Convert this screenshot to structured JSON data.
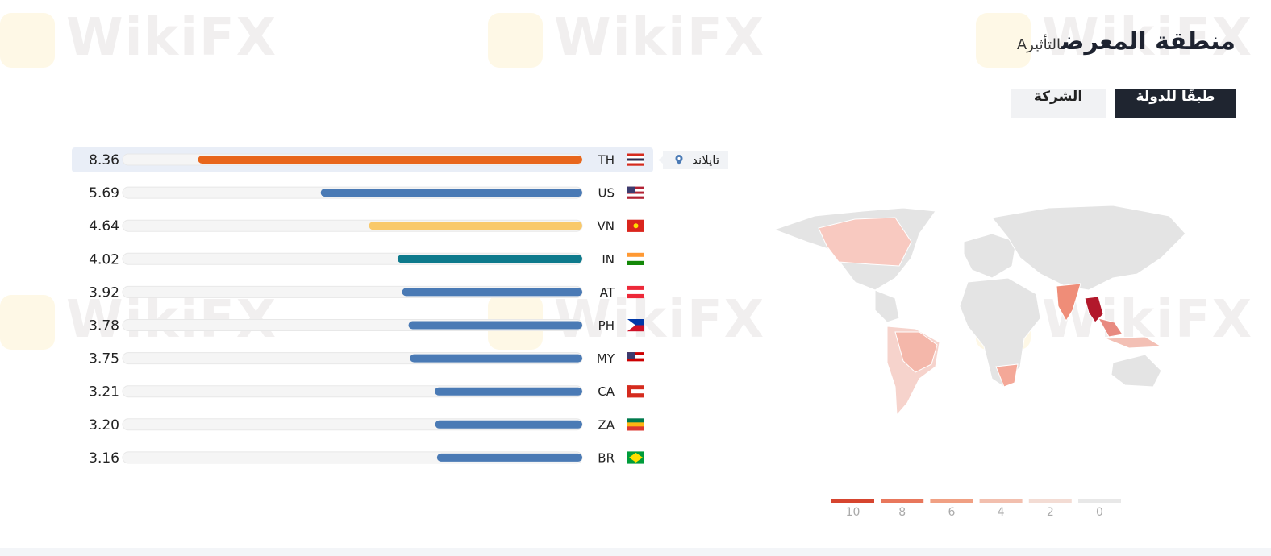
{
  "watermark": "WikiFX",
  "header": {
    "title": "منطقة المعرض",
    "subtitle": "التأثيرA"
  },
  "tabs": [
    "طبقًا للدولة",
    "الشركة"
  ],
  "tooltip": "تايلاند",
  "chart_data": {
    "type": "bar",
    "orientation": "horizontal",
    "categories": [
      "TH",
      "US",
      "VN",
      "IN",
      "AT",
      "PH",
      "MY",
      "CA",
      "ZA",
      "BR"
    ],
    "values": [
      8.36,
      5.69,
      4.64,
      4.02,
      3.92,
      3.78,
      3.75,
      3.21,
      3.2,
      3.16
    ],
    "value_labels": [
      "8.36",
      "5.69",
      "4.64",
      "4.02",
      "3.92",
      "3.78",
      "3.75",
      "3.21",
      "3.20",
      "3.16"
    ],
    "colors": [
      "#e8661c",
      "#4a7ab5",
      "#f9c96a",
      "#0e7a8c",
      "#4a7ab5",
      "#4a7ab5",
      "#4a7ab5",
      "#4a7ab5",
      "#4a7ab5",
      "#4a7ab5"
    ],
    "xlim": [
      0,
      10
    ]
  },
  "map_legend": [
    {
      "value": 10,
      "color": "#d6452f"
    },
    {
      "value": 8,
      "color": "#e8775c"
    },
    {
      "value": 6,
      "color": "#f0a083"
    },
    {
      "value": 4,
      "color": "#f2bfae"
    },
    {
      "value": 2,
      "color": "#f3dcd4"
    },
    {
      "value": 0,
      "color": "#e8e8e8"
    }
  ]
}
